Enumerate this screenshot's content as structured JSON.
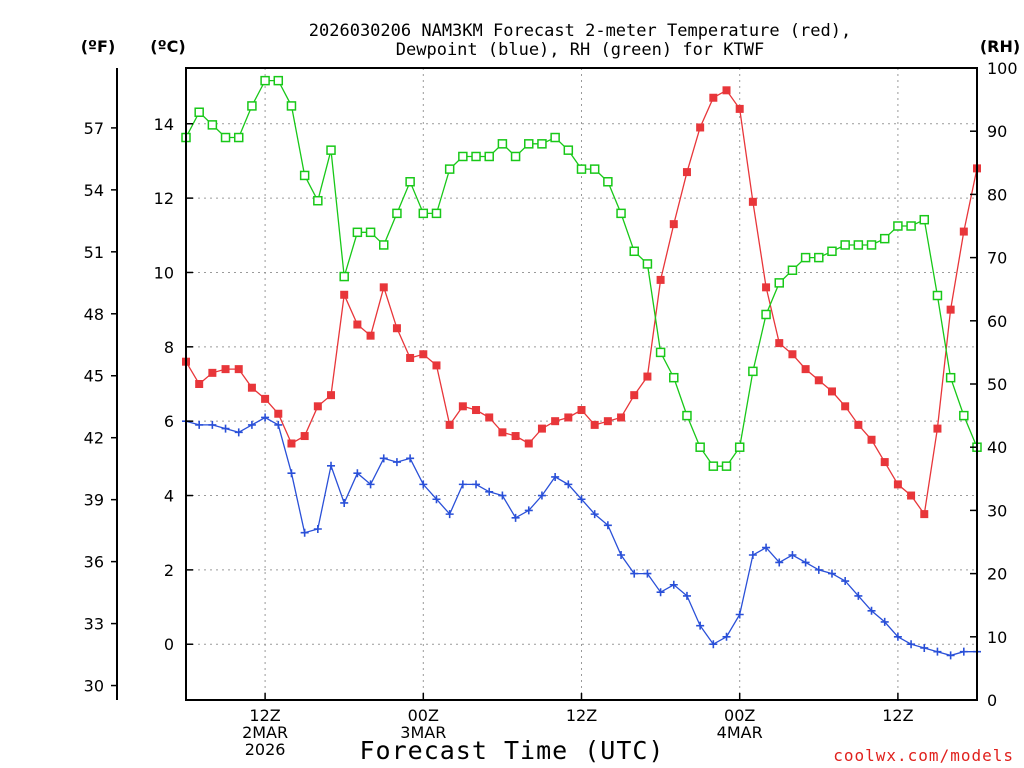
{
  "chart_data": {
    "type": "line",
    "title": "2026030206 NAM3KM Forecast 2-meter Temperature (red),",
    "title_line2": "Dewpoint (blue), RH (green) for KTWF",
    "xlabel": "Forecast Time (UTC)",
    "unit_labels": {
      "fahrenheit": "(ºF)",
      "celsius": "(ºC)",
      "rh": "(RH)"
    },
    "credit": "coolwx.com/models",
    "x_range_hours": [
      6,
      66
    ],
    "x_ticks": [
      {
        "hour": 12,
        "lines": [
          "12Z",
          "2MAR",
          "2026"
        ]
      },
      {
        "hour": 24,
        "lines": [
          "00Z",
          "3MAR"
        ]
      },
      {
        "hour": 36,
        "lines": [
          "12Z"
        ]
      },
      {
        "hour": 48,
        "lines": [
          "00Z",
          "4MAR"
        ]
      },
      {
        "hour": 60,
        "lines": [
          "12Z"
        ]
      }
    ],
    "y_left_celsius": {
      "range": [
        -1.5,
        15.5
      ],
      "ticks": [
        0,
        2,
        4,
        6,
        8,
        10,
        12,
        14
      ]
    },
    "y_left_fahrenheit": {
      "ticks": [
        30,
        33,
        36,
        39,
        42,
        45,
        48,
        51,
        54,
        57
      ]
    },
    "y_right_rh": {
      "range": [
        0,
        100
      ],
      "ticks": [
        0,
        10,
        20,
        30,
        40,
        50,
        60,
        70,
        80,
        90,
        100
      ]
    },
    "grid": true,
    "series": [
      {
        "name": "2-meter Temperature",
        "axis": "celsius",
        "color": "#e8363a",
        "marker": "filled-square",
        "x": [
          6,
          7,
          8,
          9,
          10,
          11,
          12,
          13,
          14,
          15,
          16,
          17,
          18,
          19,
          20,
          21,
          22,
          23,
          24,
          25,
          26,
          27,
          28,
          29,
          30,
          31,
          32,
          33,
          34,
          35,
          36,
          37,
          38,
          39,
          40,
          41,
          42,
          43,
          44,
          45,
          46,
          47,
          48,
          49,
          50,
          51,
          52,
          53,
          54,
          55,
          56,
          57,
          58,
          59,
          60,
          61,
          62,
          63,
          64,
          65,
          66
        ],
        "values": [
          7.6,
          7.0,
          7.3,
          7.4,
          7.4,
          6.9,
          6.6,
          6.2,
          5.4,
          5.6,
          6.4,
          6.7,
          9.4,
          8.6,
          8.3,
          9.6,
          8.5,
          7.7,
          7.8,
          7.5,
          5.9,
          6.4,
          6.3,
          6.1,
          5.7,
          5.6,
          5.4,
          5.8,
          6.0,
          6.1,
          6.3,
          5.9,
          6.0,
          6.1,
          6.7,
          7.2,
          9.8,
          11.3,
          12.7,
          13.9,
          14.7,
          14.9,
          14.4,
          11.9,
          9.6,
          8.1,
          7.8,
          7.4,
          7.1,
          6.8,
          6.4,
          5.9,
          5.5,
          4.9,
          4.3,
          4.0,
          3.5,
          5.8,
          9.0,
          11.1,
          12.8
        ]
      },
      {
        "name": "Dewpoint",
        "axis": "celsius",
        "color": "#2a50d8",
        "marker": "plus",
        "x": [
          6,
          7,
          8,
          9,
          10,
          11,
          12,
          13,
          14,
          15,
          16,
          17,
          18,
          19,
          20,
          21,
          22,
          23,
          24,
          25,
          26,
          27,
          28,
          29,
          30,
          31,
          32,
          33,
          34,
          35,
          36,
          37,
          38,
          39,
          40,
          41,
          42,
          43,
          44,
          45,
          46,
          47,
          48,
          49,
          50,
          51,
          52,
          53,
          54,
          55,
          56,
          57,
          58,
          59,
          60,
          61,
          62,
          63,
          64,
          65,
          66
        ],
        "values": [
          6.0,
          5.9,
          5.9,
          5.8,
          5.7,
          5.9,
          6.1,
          5.9,
          4.6,
          3.0,
          3.1,
          4.8,
          3.8,
          4.6,
          4.3,
          5.0,
          4.9,
          5.0,
          4.3,
          3.9,
          3.5,
          4.3,
          4.3,
          4.1,
          4.0,
          3.4,
          3.6,
          4.0,
          4.5,
          4.3,
          3.9,
          3.5,
          3.2,
          2.4,
          1.9,
          1.9,
          1.4,
          1.6,
          1.3,
          0.5,
          0.0,
          0.2,
          0.8,
          2.4,
          2.6,
          2.2,
          2.4,
          2.2,
          2.0,
          1.9,
          1.7,
          1.3,
          0.9,
          0.6,
          0.2,
          0.0,
          -0.1,
          -0.2,
          -0.3,
          -0.2,
          -0.2
        ]
      },
      {
        "name": "RH",
        "axis": "rh",
        "color": "#18c818",
        "marker": "open-square",
        "x": [
          6,
          7,
          8,
          9,
          10,
          11,
          12,
          13,
          14,
          15,
          16,
          17,
          18,
          19,
          20,
          21,
          22,
          23,
          24,
          25,
          26,
          27,
          28,
          29,
          30,
          31,
          32,
          33,
          34,
          35,
          36,
          37,
          38,
          39,
          40,
          41,
          42,
          43,
          44,
          45,
          46,
          47,
          48,
          49,
          50,
          51,
          52,
          53,
          54,
          55,
          56,
          57,
          58,
          59,
          60,
          61,
          62,
          63,
          64,
          65,
          66
        ],
        "values": [
          89,
          93,
          91,
          89,
          89,
          94,
          98,
          98,
          94,
          83,
          79,
          87,
          67,
          74,
          74,
          72,
          77,
          82,
          77,
          77,
          84,
          86,
          86,
          86,
          88,
          86,
          88,
          88,
          89,
          87,
          84,
          84,
          82,
          77,
          71,
          69,
          55,
          51,
          45,
          40,
          37,
          37,
          40,
          52,
          61,
          66,
          68,
          70,
          70,
          71,
          72,
          72,
          72,
          73,
          75,
          75,
          76,
          64,
          51,
          45,
          40
        ]
      }
    ]
  }
}
